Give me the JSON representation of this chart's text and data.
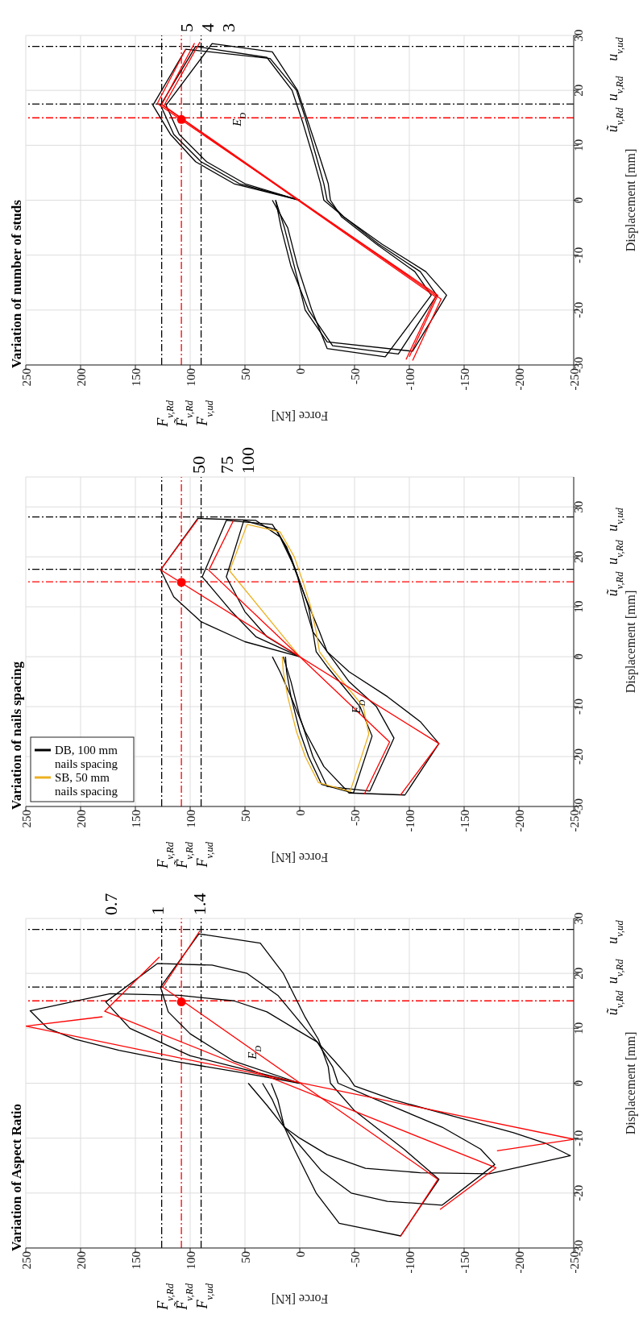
{
  "chart_data": [
    {
      "type": "line",
      "title": "Variation of Aspect Ratio",
      "xlabel": "Force [kN]",
      "ylabel": "Displacement [mm]",
      "xlim": [
        250,
        -250
      ],
      "xticks": [
        250,
        200,
        150,
        100,
        50,
        0,
        -50,
        -100,
        -150,
        -200,
        -250
      ],
      "ylim": [
        -30,
        30
      ],
      "yticks": [
        -30,
        -20,
        -10,
        0,
        10,
        20,
        30
      ],
      "grid": true,
      "series": [
        {
          "type": "line",
          "color": "#000000",
          "values": [
            0,
            2,
            4,
            6,
            8,
            10,
            13.2,
            16.3,
            16,
            15,
            13,
            10,
            7.5,
            4,
            1,
            -0.5,
            -3,
            -6,
            -9,
            -11,
            -13.2,
            -16.5,
            -16.3,
            -15.5,
            -13,
            -10,
            -8,
            -4,
            0
          ],
          "x": [
            0,
            55,
            115,
            165,
            205,
            230,
            246,
            173,
            110,
            60,
            30,
            5,
            -16,
            -32,
            -45,
            -50,
            -85,
            -140,
            -195,
            -225,
            -247,
            -173,
            -110,
            -60,
            -25,
            0,
            14,
            30,
            47
          ]
        },
        {
          "type": "line",
          "color": "#000000",
          "values": [
            0,
            5,
            10,
            14.8,
            21.8,
            21.5,
            20,
            16,
            10,
            7.5,
            3,
            0,
            -3,
            -8,
            -12,
            -14.8,
            -22.2,
            -21.5,
            -20,
            -16,
            -8,
            -3,
            0
          ],
          "x": [
            0,
            100,
            155,
            177,
            130,
            80,
            48,
            20,
            -5,
            -16,
            -30,
            -35,
            -70,
            -130,
            -165,
            -178,
            -130,
            -80,
            -47,
            -20,
            14,
            25,
            34
          ]
        },
        {
          "type": "line",
          "color": "#000000",
          "values": [
            0,
            4,
            9,
            13,
            17.5,
            27.2,
            25.5,
            20,
            12,
            8,
            3,
            0,
            -5,
            -12,
            -17.5,
            -27.8,
            -25.5,
            -20,
            -12,
            -8,
            -3,
            0
          ],
          "x": [
            0,
            60,
            100,
            120,
            127,
            92,
            36,
            15,
            -5,
            -17,
            -26,
            -28,
            -50,
            -95,
            -127,
            -92,
            -36,
            -15,
            5,
            14,
            20,
            26
          ]
        },
        {
          "type": "line",
          "color": "#ff0000",
          "values": [
            12.1,
            10.4,
            -10.2,
            -12.3
          ],
          "x": [
            180,
            250,
            -250,
            -180
          ]
        },
        {
          "type": "line",
          "color": "#ff0000",
          "values": [
            23,
            13.1,
            -15.4,
            -23
          ],
          "x": [
            128,
            178,
            -179,
            -128
          ]
        },
        {
          "type": "line",
          "color": "#ff0000",
          "values": [
            27.8,
            17.5,
            -17.5,
            -27.9
          ],
          "x": [
            91,
            125,
            -126,
            -92
          ]
        },
        {
          "type": "scatter",
          "color": "#ff0000",
          "marker": "circle",
          "values": [
            14.8
          ],
          "x": [
            108
          ]
        }
      ],
      "ref_lines": [
        {
          "axis": "x",
          "value": 126,
          "label": "F$_{v,Rd}$",
          "color": "#000000",
          "line_style": "dashed"
        },
        {
          "axis": "x",
          "value": 108,
          "label": "F̃$_{v,Rd}$",
          "color": "#ff0000",
          "line_style": "dashed"
        },
        {
          "axis": "x",
          "value": 90,
          "label": "F$_{v,ud}$",
          "color": "#000000",
          "line_style": "dashed"
        },
        {
          "axis": "y",
          "value": 15,
          "label": "ũ$_{v,Rd}$",
          "color": "#ff0000",
          "line_style": "dashed"
        },
        {
          "axis": "y",
          "value": 17.5,
          "label": "u$_{v,Rd}$",
          "color": "#000000",
          "line_style": "dashed"
        },
        {
          "axis": "y",
          "value": 28,
          "label": "u$_{v,ud}$",
          "color": "#000000",
          "line_style": "dashed"
        }
      ],
      "annotations": [
        "0.7",
        "1",
        "1.4",
        {
          "text": "E$_{D}$",
          "x": 40,
          "y": 5.6
        }
      ]
    },
    {
      "type": "line",
      "title": "Variation of nails spacing",
      "xlabel": "Force [kN]",
      "ylabel": "Displacement [mm]",
      "xlim": [
        250,
        -250
      ],
      "xticks": [
        250,
        200,
        150,
        100,
        50,
        0,
        -50,
        -100,
        -150,
        -200,
        -250
      ],
      "ylim": [
        -30,
        36
      ],
      "yticks": [
        -30,
        -20,
        -10,
        0,
        10,
        20,
        30
      ],
      "grid": true,
      "legend": "bottom left",
      "series": [
        {
          "type": "line",
          "color": "#000000",
          "values": [
            0,
            3,
            7,
            12,
            17.4,
            27.7,
            27.3,
            24,
            18,
            12,
            5,
            1,
            -3,
            -8,
            -13,
            -17.4,
            -27.7,
            -27.3,
            -22,
            -15,
            -8,
            -3,
            0
          ],
          "x": [
            0,
            50,
            90,
            115,
            127,
            93,
            40,
            18,
            5,
            -5,
            -18,
            -25,
            -45,
            -80,
            -110,
            -127,
            -96,
            -45,
            -22,
            -5,
            8,
            18,
            25
          ]
        },
        {
          "type": "line",
          "color": "#000000",
          "values": [
            0,
            4,
            9,
            16,
            27.3,
            26.5,
            22,
            16,
            10,
            5,
            1,
            -5,
            -10,
            -16.3,
            -26.9,
            -26,
            -20,
            -12,
            -5,
            0
          ],
          "x": [
            0,
            40,
            62,
            89,
            67,
            25,
            12,
            2,
            -5,
            -12,
            -25,
            -45,
            -70,
            -86,
            -64,
            -25,
            -12,
            0,
            8,
            15
          ]
        },
        {
          "type": "line",
          "name": "DB, 100 mm nails spacing",
          "color": "#000000",
          "values": [
            0,
            4,
            9,
            16,
            27.3,
            25.4,
            20,
            15,
            10,
            5,
            1,
            -2,
            -6,
            -10,
            -15.9,
            -27.3,
            -25.6,
            -20,
            -15,
            -8,
            -3,
            0
          ],
          "x": [
            0,
            30,
            50,
            67,
            51,
            21,
            8,
            0,
            -8,
            -12,
            -15,
            -25,
            -40,
            -55,
            -66,
            -49,
            -20,
            -8,
            0,
            8,
            12,
            13
          ]
        },
        {
          "type": "line",
          "name": "SB, 50 mm nails spacing",
          "color": "#edb120",
          "values": [
            0,
            17.2,
            26.5,
            25,
            20,
            15,
            10,
            5,
            1,
            -2,
            -6,
            -10,
            -15.5,
            -27,
            -25.2,
            -20,
            -15,
            -8,
            -3,
            0
          ],
          "x": [
            0,
            64,
            48,
            18,
            5,
            -3,
            -10,
            -15,
            -18,
            -28,
            -43,
            -58,
            -63,
            -46,
            -17,
            -5,
            3,
            11,
            15,
            16
          ]
        },
        {
          "type": "line",
          "color": "#ff0000",
          "values": [
            27.5,
            17.4,
            -17.4,
            -27.7
          ],
          "x": [
            93,
            127,
            -127,
            -92
          ]
        },
        {
          "type": "line",
          "color": "#ff0000",
          "values": [
            27.5,
            17.3,
            -17.1,
            -27.5
          ],
          "x": [
            60,
            83,
            -82,
            -59
          ]
        },
        {
          "type": "scatter",
          "color": "#ff0000",
          "marker": "circle",
          "values": [
            14.9
          ],
          "x": [
            108
          ]
        }
      ],
      "ref_lines": [
        {
          "axis": "x",
          "value": 126,
          "label": "F$_{v,Rd}$",
          "color": "#000000",
          "line_style": "dashed"
        },
        {
          "axis": "x",
          "value": 108,
          "label": "F̃$_{v,Rd}$",
          "color": "#ff0000",
          "line_style": "dashed"
        },
        {
          "axis": "x",
          "value": 90,
          "label": "F$_{v,ud}$",
          "color": "#000000",
          "line_style": "dashed"
        },
        {
          "axis": "y",
          "value": 15,
          "label": "ũ$_{v,Rd}$",
          "color": "#ff0000",
          "line_style": "dashed"
        },
        {
          "axis": "y",
          "value": 17.5,
          "label": "u$_{v,Rd}$",
          "color": "#000000",
          "line_style": "dashed"
        },
        {
          "axis": "y",
          "value": 28,
          "label": "u$_{v,ud}$",
          "color": "#000000",
          "line_style": "dashed"
        }
      ],
      "annotations": [
        "50",
        "75",
        "100",
        {
          "text": "E$_{D}$",
          "x": -55,
          "y": -10
        }
      ]
    },
    {
      "type": "line",
      "title": "Variation of number of studs",
      "xlabel": "Force [kN]",
      "ylabel": "Displacement [mm]",
      "xlim": [
        250,
        -250
      ],
      "xticks": [
        250,
        200,
        150,
        100,
        50,
        0,
        -50,
        -100,
        -150,
        -200,
        -250
      ],
      "ylim": [
        -30,
        30
      ],
      "yticks": [
        -30,
        -20,
        -10,
        0,
        10,
        20,
        30
      ],
      "grid": true,
      "series": [
        {
          "type": "line",
          "color": "#000000",
          "values": [
            0,
            3,
            7,
            12,
            17.3,
            27.5,
            25.8,
            20,
            15,
            8,
            3,
            0,
            -3,
            -8,
            -13,
            -17.3,
            -27.5,
            -25.8,
            -20,
            -12,
            -5,
            0
          ],
          "x": [
            0,
            60,
            95,
            118,
            134,
            104,
            27,
            3,
            -5,
            -15,
            -22,
            -25,
            -40,
            -75,
            -115,
            -134,
            -103,
            -25,
            -5,
            5,
            14,
            22
          ]
        },
        {
          "type": "line",
          "color": "#000000",
          "values": [
            0,
            3,
            7,
            12,
            17.3,
            28,
            26,
            20,
            14,
            8,
            3,
            0,
            -3,
            -8,
            -13,
            -17.3,
            -28,
            -26.5,
            -20,
            -12,
            -5,
            0
          ],
          "x": [
            0,
            55,
            90,
            115,
            127,
            95,
            30,
            7,
            -3,
            -12,
            -19,
            -22,
            -40,
            -72,
            -110,
            -125,
            -90,
            -30,
            -8,
            8,
            17,
            22
          ]
        },
        {
          "type": "line",
          "color": "#000000",
          "values": [
            0,
            3,
            7,
            12,
            17.3,
            28.5,
            27,
            20,
            14,
            8,
            3,
            0,
            -3,
            -8,
            -13,
            -17.3,
            -28.5,
            -27,
            -20,
            -12,
            -5,
            0
          ],
          "x": [
            0,
            50,
            85,
            110,
            122,
            80,
            25,
            2,
            -8,
            -18,
            -26,
            -28,
            -38,
            -70,
            -105,
            -120,
            -78,
            -25,
            -11,
            2,
            11,
            25
          ]
        },
        {
          "type": "line",
          "color": "#ff0000",
          "values": [
            27.5,
            17.6,
            -17.3,
            -28.5
          ],
          "x": [
            104,
            130,
            -126,
            -100
          ]
        },
        {
          "type": "line",
          "color": "#ff0000",
          "values": [
            28.6,
            17.4,
            -17.6,
            -29
          ],
          "x": [
            96,
            126,
            -124,
            -97
          ]
        },
        {
          "type": "line",
          "color": "#ff0000",
          "values": [
            28.8,
            17.2,
            -18,
            -29.2
          ],
          "x": [
            91,
            124,
            -129,
            -103
          ]
        },
        {
          "type": "scatter",
          "color": "#ff0000",
          "marker": "circle",
          "values": [
            14.7
          ],
          "x": [
            108
          ]
        }
      ],
      "ref_lines": [
        {
          "axis": "x",
          "value": 126,
          "label": "F$_{v,Rd}$",
          "color": "#000000",
          "line_style": "dashed"
        },
        {
          "axis": "x",
          "value": 108,
          "label": "F̃$_{v,Rd}$",
          "color": "#ff0000",
          "line_style": "dashed"
        },
        {
          "axis": "x",
          "value": 90,
          "label": "F$_{v,ud}$",
          "color": "#000000",
          "line_style": "dashed"
        },
        {
          "axis": "y",
          "value": 15,
          "label": "ũ$_{v,Rd}$",
          "color": "#ff0000",
          "line_style": "dashed"
        },
        {
          "axis": "y",
          "value": 17.5,
          "label": "u$_{v,Rd}$",
          "color": "#000000",
          "line_style": "dashed"
        },
        {
          "axis": "y",
          "value": 28,
          "label": "u$_{v,ud}$",
          "color": "#000000",
          "line_style": "dashed"
        }
      ],
      "annotations": [
        "5",
        "4",
        "3",
        {
          "text": "E$_{D}$",
          "x": 54,
          "y": 14.7
        }
      ]
    }
  ]
}
